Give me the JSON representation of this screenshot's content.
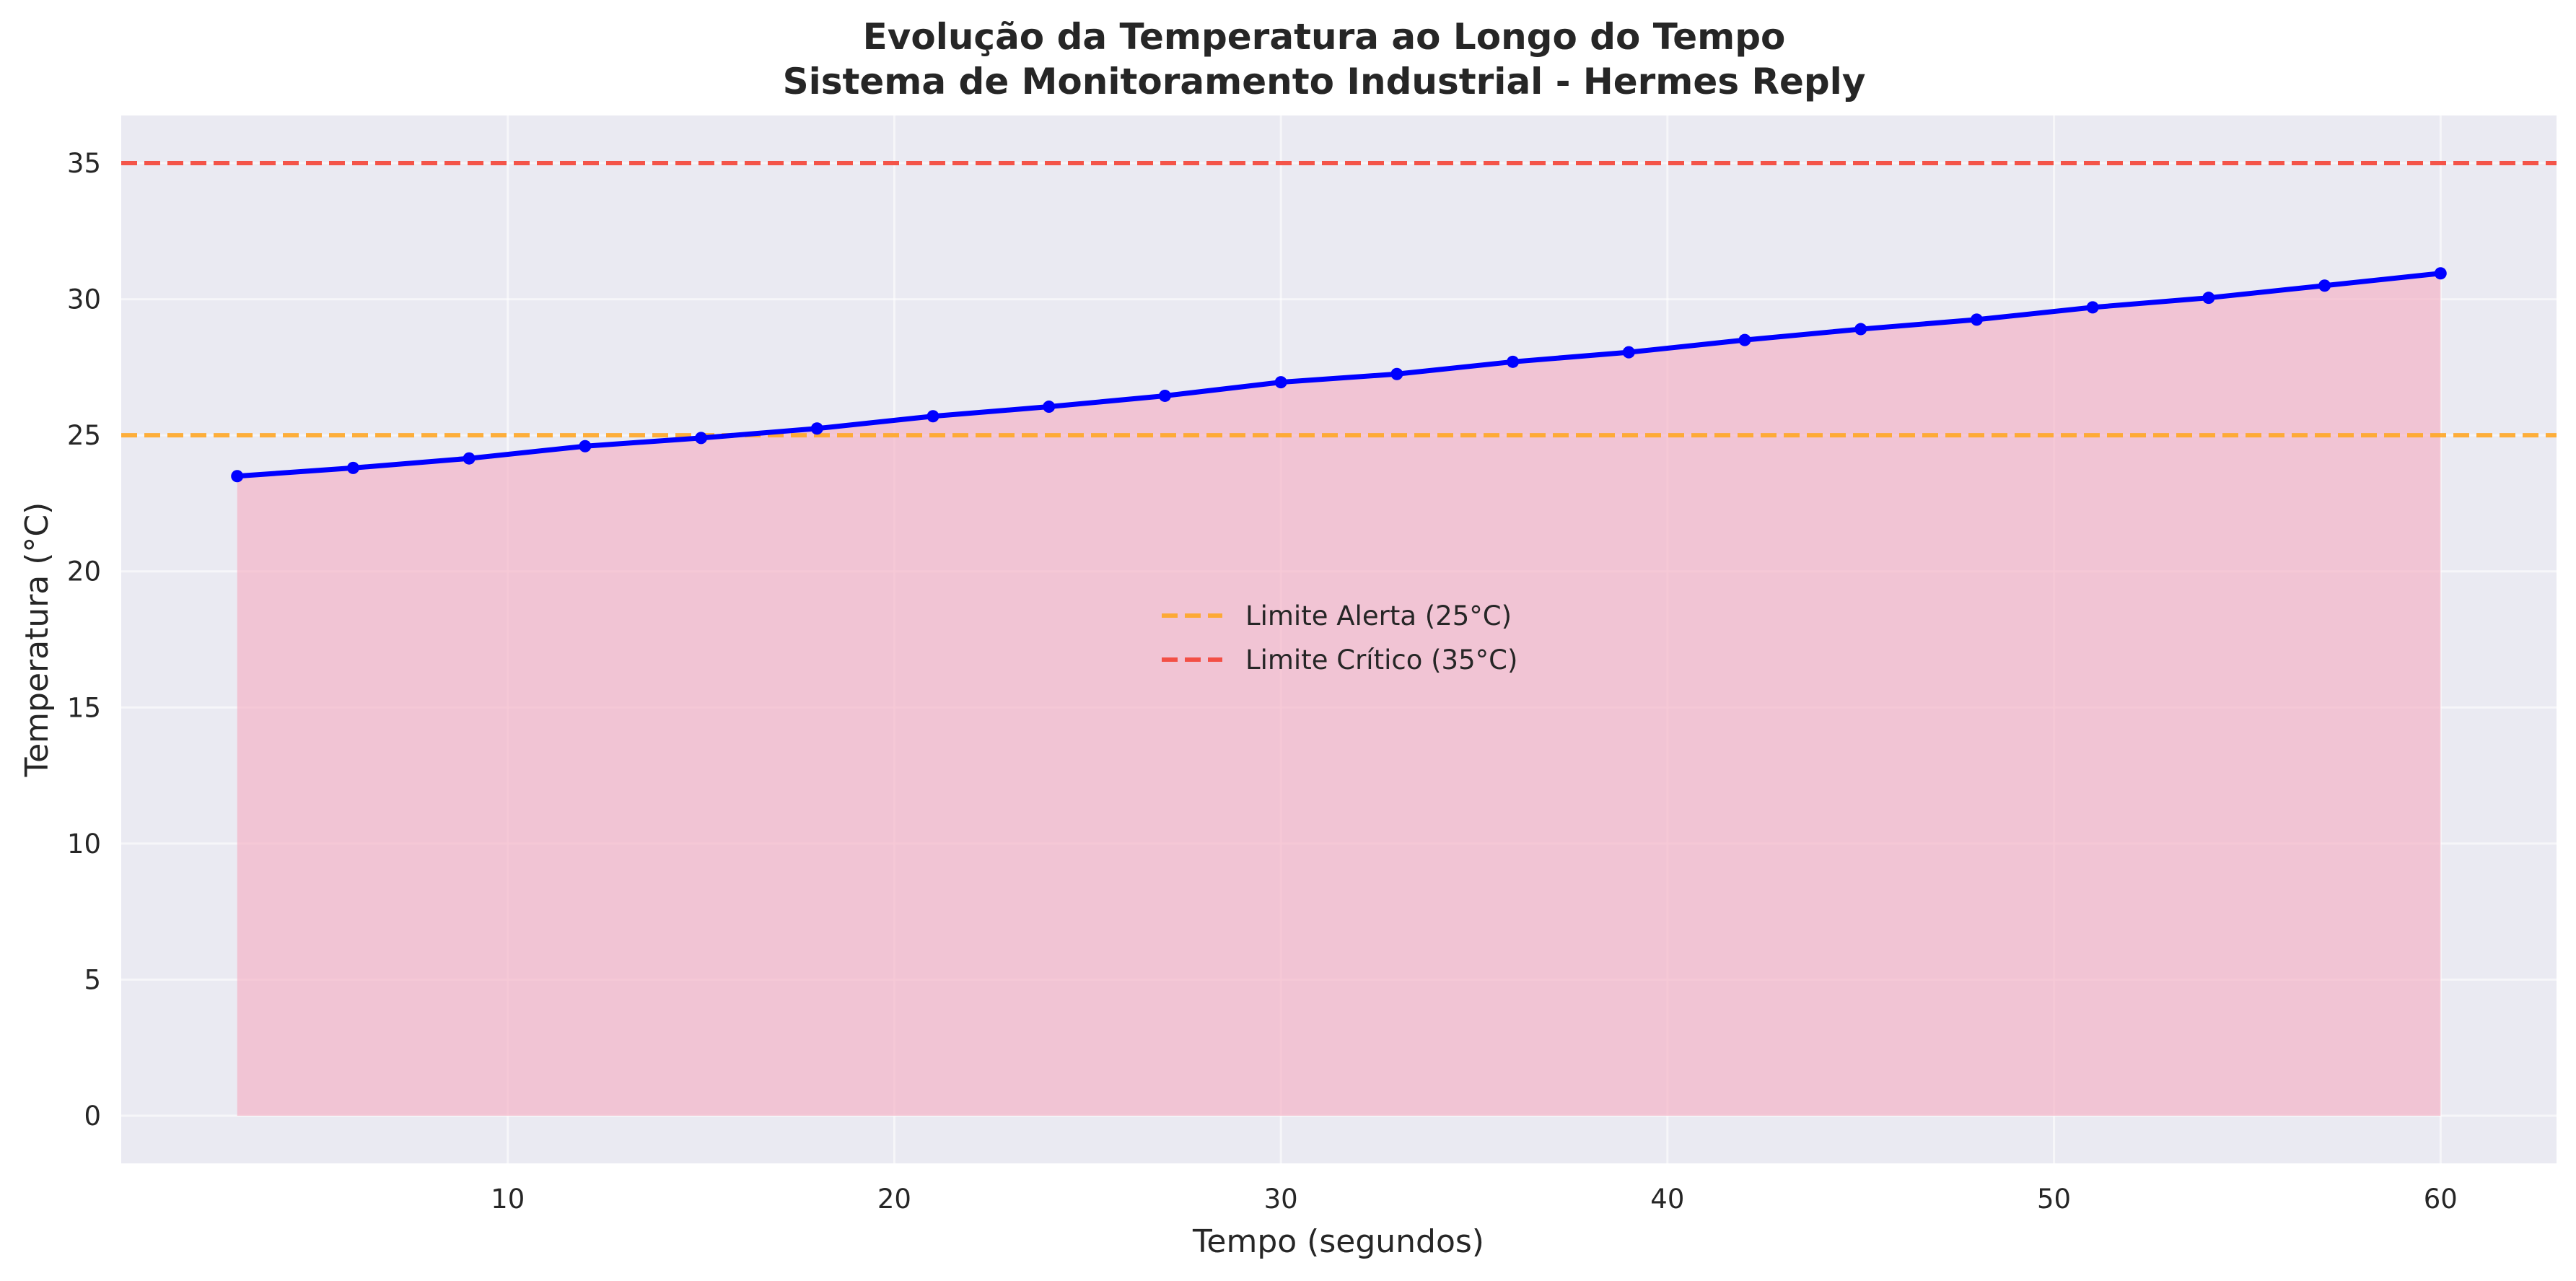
{
  "chart_data": {
    "type": "line",
    "title": "Evolução da Temperatura ao Longo do Tempo",
    "subtitle": "Sistema de Monitoramento Industrial - Hermes Reply",
    "xlabel": "Tempo (segundos)",
    "ylabel": "Temperatura (°C)",
    "xlim": [
      0,
      63
    ],
    "ylim": [
      -1.75,
      36.75
    ],
    "xticks": [
      10,
      20,
      30,
      40,
      50,
      60
    ],
    "yticks": [
      0,
      5,
      10,
      15,
      20,
      25,
      30,
      35
    ],
    "grid": true,
    "legend_position": "center",
    "series": [
      {
        "color": "#0000ff",
        "fill_color": "#f4b6c8",
        "x": [
          3,
          6,
          9,
          12,
          15,
          18,
          21,
          24,
          27,
          30,
          33,
          36,
          39,
          42,
          45,
          48,
          51,
          54,
          57,
          60
        ],
        "y": [
          23.5,
          23.8,
          24.15,
          24.6,
          24.9,
          25.25,
          25.7,
          26.05,
          26.45,
          26.95,
          27.25,
          27.7,
          28.05,
          28.5,
          28.9,
          29.25,
          29.7,
          30.05,
          30.5,
          30.95
        ]
      }
    ],
    "thresholds": [
      {
        "name": "Limite Alerta (25°C)",
        "value": 25,
        "color": "#ffa726"
      },
      {
        "name": "Limite Crítico (35°C)",
        "value": 35,
        "color": "#f44336"
      }
    ]
  }
}
